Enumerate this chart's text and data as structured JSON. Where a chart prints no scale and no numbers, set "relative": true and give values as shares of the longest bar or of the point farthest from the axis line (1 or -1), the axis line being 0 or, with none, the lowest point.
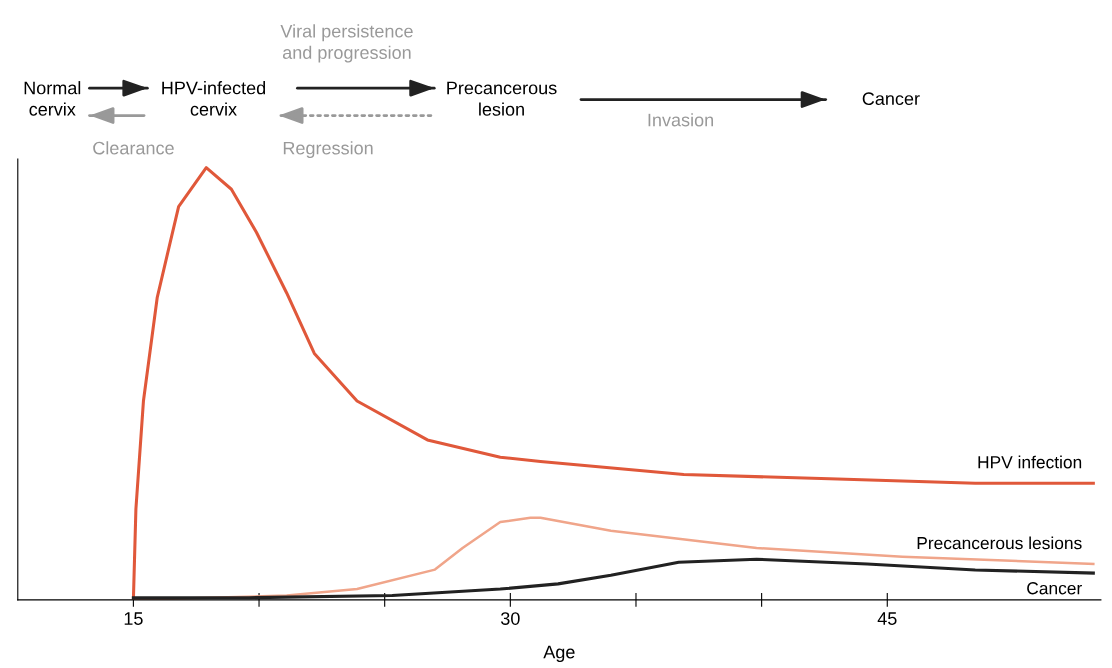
{
  "chart_data": {
    "type": "line",
    "relative": true,
    "xlabel": "Age",
    "xlim": [
      10.4,
      53.5
    ],
    "xticks": [
      15,
      {
        "value": 20,
        "label": null
      },
      {
        "value": 25,
        "label": null
      },
      30,
      {
        "value": 35,
        "label": null
      },
      {
        "value": 40,
        "label": null
      },
      45
    ],
    "tick_labels": "x",
    "grid": false,
    "legend": false,
    "marker": "none",
    "line_style": "solid",
    "annotations": [
      "Normal\ncervix",
      "HPV-infected\ncervix",
      "Precancerous\nlesion",
      "Cancer",
      "Viral persistence\nand progression",
      "Clearance",
      "Regression",
      "Invasion"
    ],
    "series": [
      {
        "name": "HPV infection",
        "color": "#e0583a",
        "x": [
          15,
          15.1,
          15.4,
          15.95,
          16.8,
          17.9,
          18.9,
          19.9,
          21.1,
          22.2,
          23.9,
          26.7,
          29.6,
          31.2,
          36.9,
          42.7,
          48.5,
          53.2
        ],
        "values": [
          0,
          0.21,
          0.46,
          0.7,
          0.91,
          1,
          0.95,
          0.85,
          0.71,
          0.57,
          0.46,
          0.37,
          0.33,
          0.32,
          0.29,
          0.28,
          0.27,
          0.27
        ]
      },
      {
        "name": "Precancerous lesions",
        "color": "#f0a58a",
        "x": [
          15,
          21.1,
          23.9,
          27.0,
          28.1,
          29.6,
          30.8,
          31.2,
          34.0,
          39.8,
          45.6,
          53.2
        ],
        "values": [
          0,
          0.01,
          0.025,
          0.07,
          0.12,
          0.18,
          0.19,
          0.19,
          0.16,
          0.12,
          0.1,
          0.083
        ]
      },
      {
        "name": "Cancer",
        "color": "#222222",
        "x": [
          15,
          19.6,
          25.3,
          29.6,
          31.9,
          34.0,
          36.7,
          39.8,
          44.2,
          48.5,
          53.2
        ],
        "values": [
          0.005,
          0.005,
          0.01,
          0.025,
          0.037,
          0.057,
          0.087,
          0.094,
          0.083,
          0.069,
          0.062
        ]
      }
    ]
  }
}
